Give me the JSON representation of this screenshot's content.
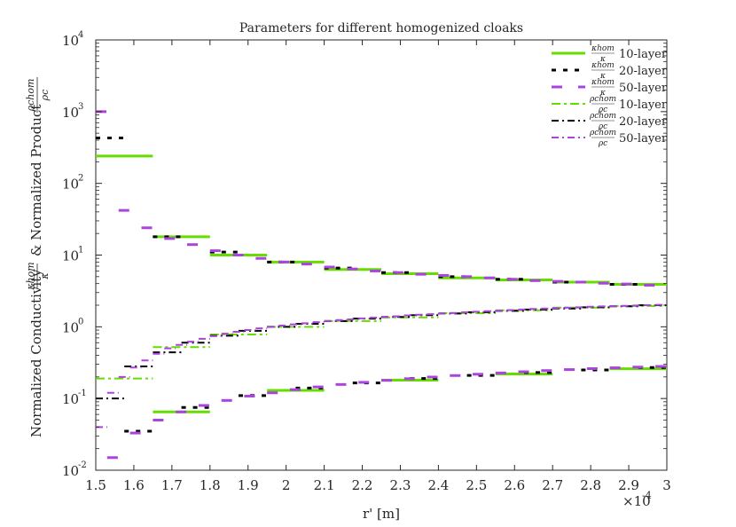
{
  "chart_data": {
    "type": "line",
    "title": "Parameters for different homogenized cloaks",
    "xlabel": "r' [m]",
    "x_exponent_label": "×10",
    "x_exponent_power": "-4",
    "ylabel": {
      "text1": "Normalized Conductivity",
      "text2": "& Normalized Product",
      "frac1_num": "κhom",
      "frac1_den": "κ",
      "frac2_num": "ρchom",
      "frac2_den": "ρc"
    },
    "xlim": [
      1.5,
      3.0
    ],
    "ylim": [
      0.01,
      10000
    ],
    "yscale": "log",
    "grid": false,
    "legend_position": "top-right",
    "xticks": [
      "1.5",
      "1.6",
      "1.7",
      "1.8",
      "1.9",
      "2",
      "2.1",
      "2.2",
      "2.3",
      "2.4",
      "2.5",
      "2.6",
      "2.7",
      "2.8",
      "2.9",
      "3"
    ],
    "ytick_bases": [
      "10",
      "10",
      "10",
      "10",
      "10",
      "10",
      "10"
    ],
    "ytick_powers": [
      "-2",
      "-1",
      "0",
      "1",
      "2",
      "3",
      "4"
    ],
    "series": [
      {
        "name": "10-layer",
        "legend_num": "κhom",
        "legend_den": "κ",
        "color": "#66dd00",
        "dash": "solid",
        "stroke_width": 3,
        "steps": [
          [
            1.5,
            1.65,
            240
          ],
          [
            1.65,
            1.8,
            18
          ],
          [
            1.8,
            1.95,
            10
          ],
          [
            1.95,
            2.1,
            8
          ],
          [
            2.1,
            2.25,
            6.3
          ],
          [
            2.25,
            2.4,
            5.5
          ],
          [
            2.4,
            2.55,
            4.8
          ],
          [
            2.55,
            2.7,
            4.5
          ],
          [
            2.7,
            2.85,
            4.2
          ],
          [
            2.85,
            3.0,
            3.9
          ]
        ]
      },
      {
        "name": "20-layer",
        "legend_num": "κhom",
        "legend_den": "κ",
        "color": "#000000",
        "dash": "5,8",
        "stroke_width": 3,
        "steps": [
          [
            1.5,
            1.575,
            430
          ],
          [
            1.65,
            1.725,
            18
          ],
          [
            1.8,
            1.875,
            11
          ],
          [
            1.95,
            2.025,
            8
          ],
          [
            2.1,
            2.175,
            6.6
          ],
          [
            2.25,
            2.325,
            5.7
          ],
          [
            2.4,
            2.475,
            5
          ],
          [
            2.55,
            2.625,
            4.6
          ],
          [
            2.7,
            2.775,
            4.2
          ],
          [
            2.85,
            2.925,
            3.9
          ]
        ]
      },
      {
        "name": "50-layer",
        "legend_num": "κhom",
        "legend_den": "κ",
        "color": "#aa44dd",
        "dash": "12,18",
        "stroke_width": 3,
        "steps": [
          [
            1.5,
            1.53,
            1000
          ],
          [
            1.56,
            1.59,
            42
          ],
          [
            1.62,
            1.65,
            24
          ],
          [
            1.68,
            1.71,
            17
          ],
          [
            1.74,
            1.77,
            14
          ],
          [
            1.8,
            1.83,
            11.5
          ],
          [
            1.86,
            1.89,
            10
          ],
          [
            1.92,
            1.95,
            9
          ],
          [
            1.98,
            2.01,
            8
          ],
          [
            2.04,
            2.07,
            7.5
          ],
          [
            2.1,
            2.13,
            6.8
          ],
          [
            2.16,
            2.19,
            6.4
          ],
          [
            2.22,
            2.25,
            6
          ],
          [
            2.28,
            2.31,
            5.7
          ],
          [
            2.34,
            2.37,
            5.4
          ],
          [
            2.4,
            2.43,
            5.2
          ],
          [
            2.46,
            2.49,
            5
          ],
          [
            2.52,
            2.55,
            4.8
          ],
          [
            2.58,
            2.61,
            4.6
          ],
          [
            2.64,
            2.67,
            4.4
          ],
          [
            2.7,
            2.73,
            4.3
          ],
          [
            2.76,
            2.79,
            4.2
          ],
          [
            2.82,
            2.85,
            4.05
          ],
          [
            2.88,
            2.91,
            3.95
          ],
          [
            2.94,
            2.97,
            3.8
          ]
        ]
      },
      {
        "name": "10-layer",
        "legend_num": "ρchom",
        "legend_den": "ρc",
        "color": "#66dd00",
        "dash": "10,4,3,4",
        "stroke_width": 2,
        "steps": [
          [
            1.5,
            1.65,
            0.19
          ],
          [
            1.65,
            1.8,
            0.52
          ],
          [
            1.8,
            1.95,
            0.78
          ],
          [
            1.95,
            2.1,
            1.0
          ],
          [
            2.1,
            2.25,
            1.2
          ],
          [
            2.25,
            2.4,
            1.35
          ],
          [
            2.4,
            2.55,
            1.55
          ],
          [
            2.55,
            2.7,
            1.7
          ],
          [
            2.7,
            2.85,
            1.85
          ],
          [
            2.85,
            3.0,
            1.95
          ]
        ]
      },
      {
        "name": "20-layer",
        "legend_num": "ρchom",
        "legend_den": "ρc",
        "color": "#000000",
        "dash": "8,4,2,4",
        "stroke_width": 2,
        "steps": [
          [
            1.5,
            1.575,
            0.1
          ],
          [
            1.575,
            1.65,
            0.28
          ],
          [
            1.65,
            1.725,
            0.44
          ],
          [
            1.725,
            1.8,
            0.6
          ],
          [
            1.8,
            1.875,
            0.75
          ],
          [
            1.875,
            1.95,
            0.88
          ],
          [
            1.95,
            2.025,
            1.0
          ],
          [
            2.025,
            2.1,
            1.1
          ],
          [
            2.1,
            2.175,
            1.2
          ],
          [
            2.175,
            2.25,
            1.3
          ],
          [
            2.25,
            2.325,
            1.37
          ],
          [
            2.325,
            2.4,
            1.45
          ],
          [
            2.4,
            2.475,
            1.53
          ],
          [
            2.475,
            2.55,
            1.6
          ],
          [
            2.55,
            2.625,
            1.67
          ],
          [
            2.625,
            2.7,
            1.74
          ],
          [
            2.7,
            2.775,
            1.8
          ],
          [
            2.775,
            2.85,
            1.87
          ],
          [
            2.85,
            2.925,
            1.93
          ],
          [
            2.925,
            3.0,
            2.0
          ]
        ]
      },
      {
        "name": "50-layer",
        "legend_num": "ρchom",
        "legend_den": "ρc",
        "color": "#aa44dd",
        "dash": "8,4,2,4",
        "stroke_width": 2,
        "steps": [
          [
            1.5,
            1.53,
            0.04
          ],
          [
            1.53,
            1.56,
            0.12
          ],
          [
            1.56,
            1.59,
            0.2
          ],
          [
            1.59,
            1.62,
            0.27
          ],
          [
            1.62,
            1.65,
            0.34
          ],
          [
            1.65,
            1.68,
            0.42
          ],
          [
            1.68,
            1.71,
            0.5
          ],
          [
            1.71,
            1.74,
            0.56
          ],
          [
            1.74,
            1.77,
            0.62
          ],
          [
            1.77,
            1.8,
            0.68
          ],
          [
            1.8,
            1.83,
            0.74
          ],
          [
            1.83,
            1.86,
            0.8
          ],
          [
            1.86,
            1.89,
            0.85
          ],
          [
            1.89,
            1.92,
            0.9
          ],
          [
            1.92,
            1.95,
            0.95
          ],
          [
            1.95,
            1.98,
            1.0
          ],
          [
            1.98,
            2.01,
            1.04
          ],
          [
            2.01,
            2.04,
            1.08
          ],
          [
            2.04,
            2.07,
            1.12
          ],
          [
            2.07,
            2.1,
            1.16
          ],
          [
            2.1,
            2.13,
            1.2
          ],
          [
            2.13,
            2.16,
            1.24
          ],
          [
            2.16,
            2.19,
            1.27
          ],
          [
            2.19,
            2.22,
            1.31
          ],
          [
            2.22,
            2.25,
            1.34
          ],
          [
            2.25,
            2.28,
            1.37
          ],
          [
            2.28,
            2.31,
            1.4
          ],
          [
            2.31,
            2.34,
            1.44
          ],
          [
            2.34,
            2.37,
            1.47
          ],
          [
            2.37,
            2.4,
            1.5
          ],
          [
            2.4,
            2.43,
            1.53
          ],
          [
            2.43,
            2.46,
            1.56
          ],
          [
            2.46,
            2.49,
            1.59
          ],
          [
            2.49,
            2.52,
            1.62
          ],
          [
            2.52,
            2.55,
            1.65
          ],
          [
            2.55,
            2.58,
            1.68
          ],
          [
            2.58,
            2.61,
            1.71
          ],
          [
            2.61,
            2.64,
            1.74
          ],
          [
            2.64,
            2.67,
            1.77
          ],
          [
            2.67,
            2.7,
            1.8
          ],
          [
            2.7,
            2.73,
            1.82
          ],
          [
            2.73,
            2.76,
            1.85
          ],
          [
            2.76,
            2.79,
            1.87
          ],
          [
            2.79,
            2.82,
            1.9
          ],
          [
            2.82,
            2.85,
            1.92
          ],
          [
            2.85,
            2.88,
            1.94
          ],
          [
            2.88,
            2.91,
            1.96
          ],
          [
            2.91,
            2.94,
            1.98
          ],
          [
            2.94,
            2.97,
            2.0
          ],
          [
            2.97,
            3.0,
            2.02
          ]
        ]
      },
      {
        "name": "",
        "color": "#66dd00",
        "dash": "solid",
        "stroke_width": 3,
        "legend": false,
        "steps": [
          [
            1.65,
            1.8,
            0.065
          ],
          [
            1.95,
            2.1,
            0.13
          ],
          [
            2.25,
            2.4,
            0.18
          ],
          [
            2.55,
            2.7,
            0.22
          ],
          [
            2.85,
            3.0,
            0.26
          ]
        ]
      },
      {
        "name": "",
        "color": "#000000",
        "dash": "5,8",
        "stroke_width": 3,
        "legend": false,
        "steps": [
          [
            1.575,
            1.65,
            0.035
          ],
          [
            1.725,
            1.8,
            0.075
          ],
          [
            1.875,
            1.95,
            0.11
          ],
          [
            2.025,
            2.1,
            0.14
          ],
          [
            2.175,
            2.25,
            0.165
          ],
          [
            2.325,
            2.4,
            0.19
          ],
          [
            2.475,
            2.55,
            0.21
          ],
          [
            2.625,
            2.7,
            0.23
          ],
          [
            2.775,
            2.85,
            0.25
          ],
          [
            2.925,
            3.0,
            0.27
          ]
        ]
      },
      {
        "name": "",
        "color": "#aa44dd",
        "dash": "12,18",
        "stroke_width": 3,
        "legend": false,
        "steps": [
          [
            1.53,
            1.56,
            0.015
          ],
          [
            1.59,
            1.62,
            0.033
          ],
          [
            1.65,
            1.68,
            0.05
          ],
          [
            1.71,
            1.74,
            0.065
          ],
          [
            1.77,
            1.8,
            0.08
          ],
          [
            1.83,
            1.86,
            0.094
          ],
          [
            1.89,
            1.92,
            0.108
          ],
          [
            1.95,
            1.98,
            0.12
          ],
          [
            2.01,
            2.04,
            0.133
          ],
          [
            2.07,
            2.1,
            0.145
          ],
          [
            2.13,
            2.16,
            0.157
          ],
          [
            2.19,
            2.22,
            0.168
          ],
          [
            2.25,
            2.28,
            0.179
          ],
          [
            2.31,
            2.34,
            0.189
          ],
          [
            2.37,
            2.4,
            0.199
          ],
          [
            2.43,
            2.46,
            0.209
          ],
          [
            2.49,
            2.52,
            0.218
          ],
          [
            2.55,
            2.58,
            0.227
          ],
          [
            2.61,
            2.64,
            0.236
          ],
          [
            2.67,
            2.7,
            0.245
          ],
          [
            2.73,
            2.76,
            0.253
          ],
          [
            2.79,
            2.82,
            0.261
          ],
          [
            2.85,
            2.88,
            0.268
          ],
          [
            2.91,
            2.94,
            0.274
          ],
          [
            2.97,
            3.0,
            0.28
          ]
        ]
      }
    ]
  }
}
